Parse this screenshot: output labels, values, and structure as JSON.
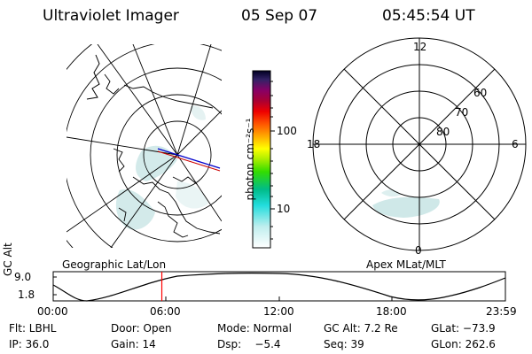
{
  "header": {
    "instrument": "Ultraviolet Imager",
    "date": "05 Sep 07",
    "time": "05:45:54 UT"
  },
  "colorbar": {
    "unit_label": "photon cm⁻²s⁻¹",
    "ticks": [
      "100",
      "10"
    ],
    "scale": "log"
  },
  "geographic_panel": {
    "label": "Geographic Lat/Lon",
    "aurora_color": "#cfe8e8"
  },
  "apex_panel": {
    "label": "Apex MLat/MLT",
    "mlt_labels": {
      "top": "12",
      "left": "18",
      "right": "6",
      "bottom": "0"
    },
    "mlat_labels": [
      "60",
      "70",
      "80"
    ]
  },
  "orbit_plot": {
    "ylabel": "GC Alt",
    "yticks": [
      "9.0",
      "1.8"
    ],
    "xticks": [
      "00:00",
      "06:00",
      "12:00",
      "18:00",
      "23:59"
    ],
    "current_time_hours": 5.765,
    "marker_color": "#ff0000"
  },
  "info": {
    "row1": [
      "Flt: LBHL",
      "Door: Open",
      "Mode: Normal",
      "GC Alt: 7.2 Re",
      "GLat: −73.9"
    ],
    "row2": [
      "IP: 36.0",
      "Gain: 14",
      "Dsp:    −5.4",
      "Seq: 39",
      "GLon: 262.6"
    ]
  }
}
